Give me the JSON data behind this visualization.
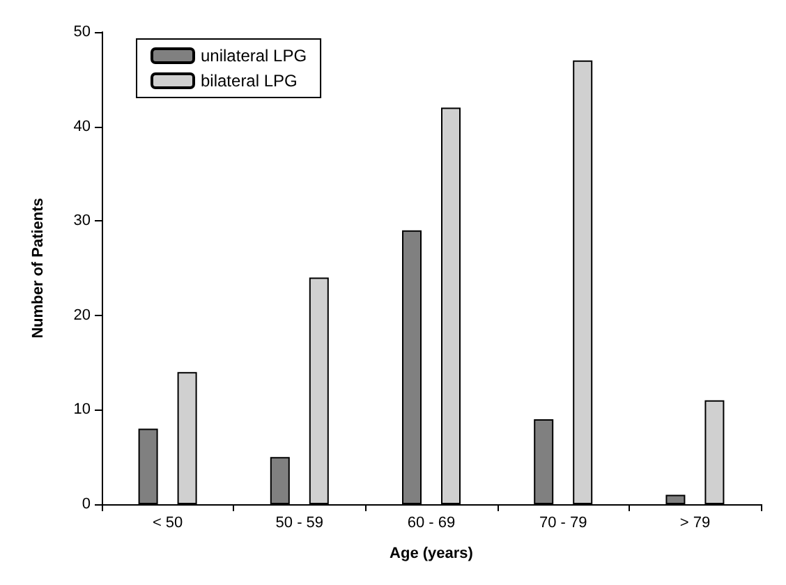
{
  "chart_data": {
    "type": "bar",
    "xlabel": "Age (years)",
    "ylabel": "Number of Patients",
    "categories": [
      "< 50",
      "50 - 59",
      "60 - 69",
      "70 - 79",
      "> 79"
    ],
    "series": [
      {
        "name": "unilateral LPG",
        "color": "#808080",
        "values": [
          8,
          5,
          29,
          9,
          1
        ]
      },
      {
        "name": "bilateral LPG",
        "color": "#d0d0d0",
        "values": [
          14,
          24,
          42,
          47,
          11
        ]
      }
    ],
    "ylim": [
      0,
      50
    ],
    "yticks": [
      0,
      10,
      20,
      30,
      40,
      50
    ],
    "grid": false,
    "legend": "top left"
  }
}
